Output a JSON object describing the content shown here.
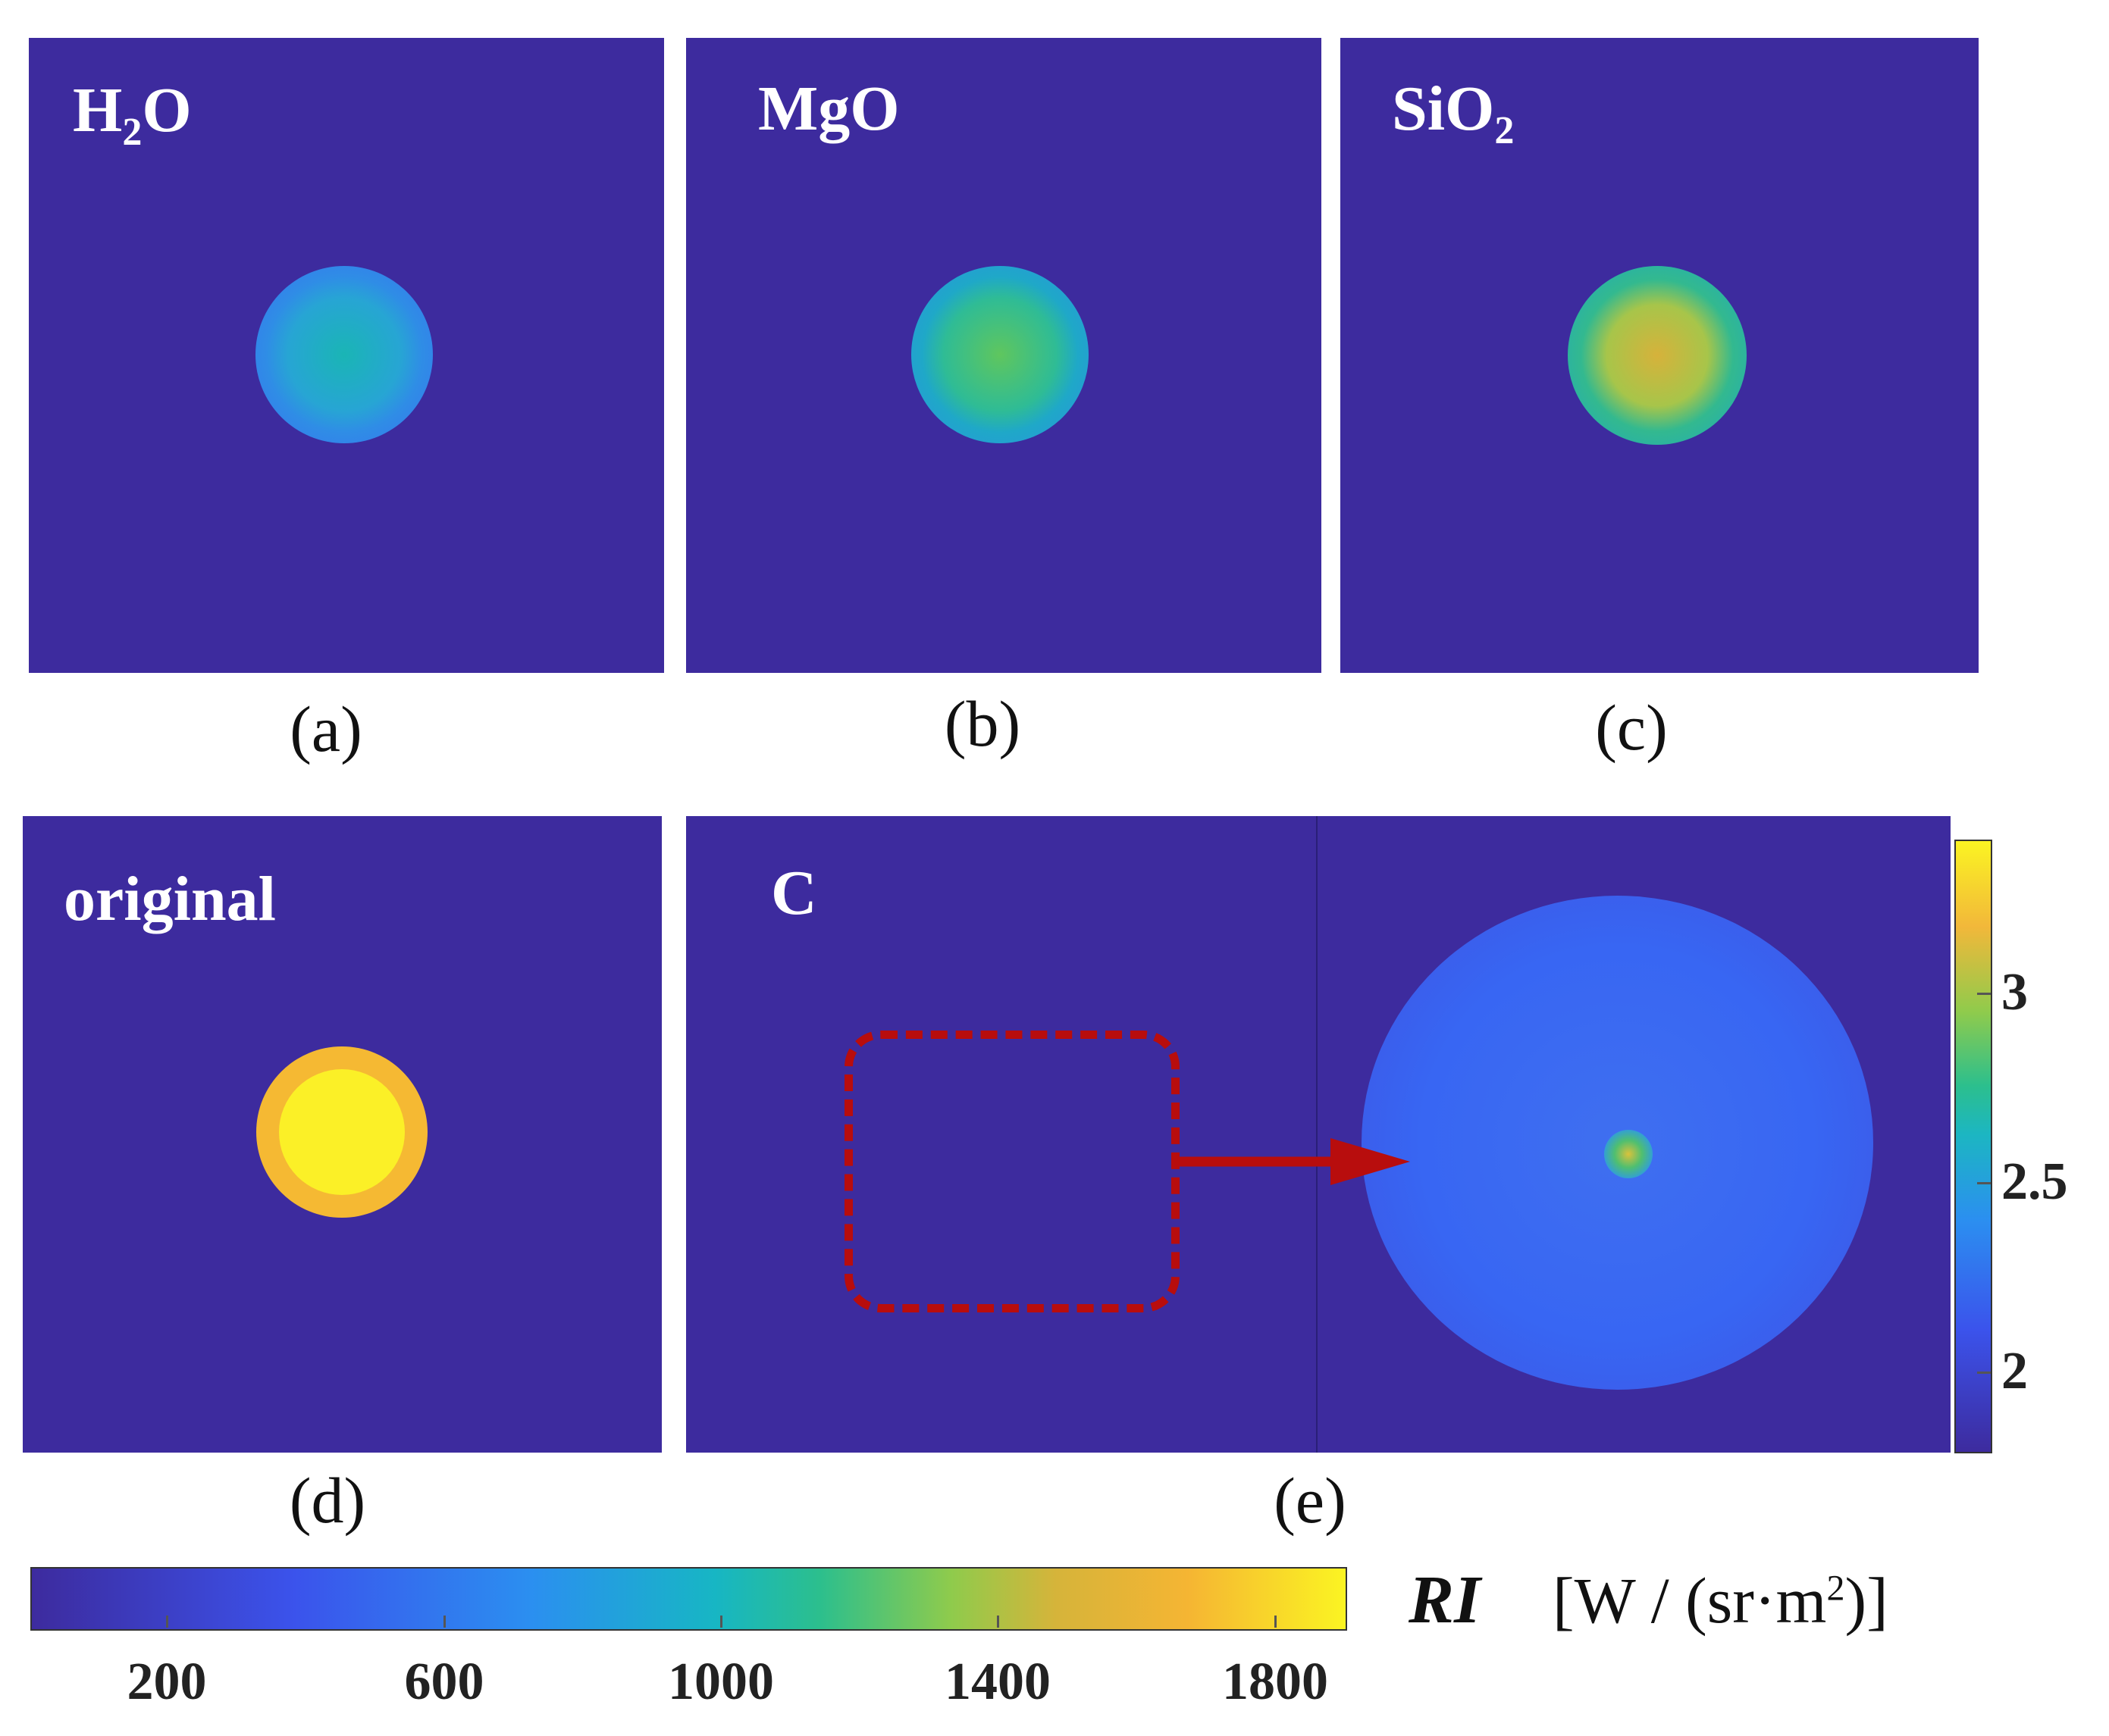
{
  "panels": {
    "a": {
      "label_main": "H",
      "label_sub": "2",
      "label_tail": "O",
      "caption": "(a)"
    },
    "b": {
      "label": "MgO",
      "caption": "(b)"
    },
    "c": {
      "label_main": "SiO",
      "label_sub": "2",
      "caption": "(c)"
    },
    "d": {
      "label": "original",
      "caption": "(d)"
    },
    "e": {
      "label": "C",
      "caption": "(e)"
    }
  },
  "horizontal_colorbar": {
    "ticks": [
      "200",
      "600",
      "1000",
      "1400",
      "1800"
    ],
    "quantity": "RI",
    "unit_open": "[W / (sr",
    "unit_dot": "·",
    "unit_m": "m",
    "unit_exp": "2",
    "unit_close": ")]"
  },
  "vertical_colorbar": {
    "ticks": [
      "3",
      "2.5",
      "2"
    ]
  },
  "colors": {
    "background": "#3d2b9e",
    "annotation": "#b80d0d"
  }
}
